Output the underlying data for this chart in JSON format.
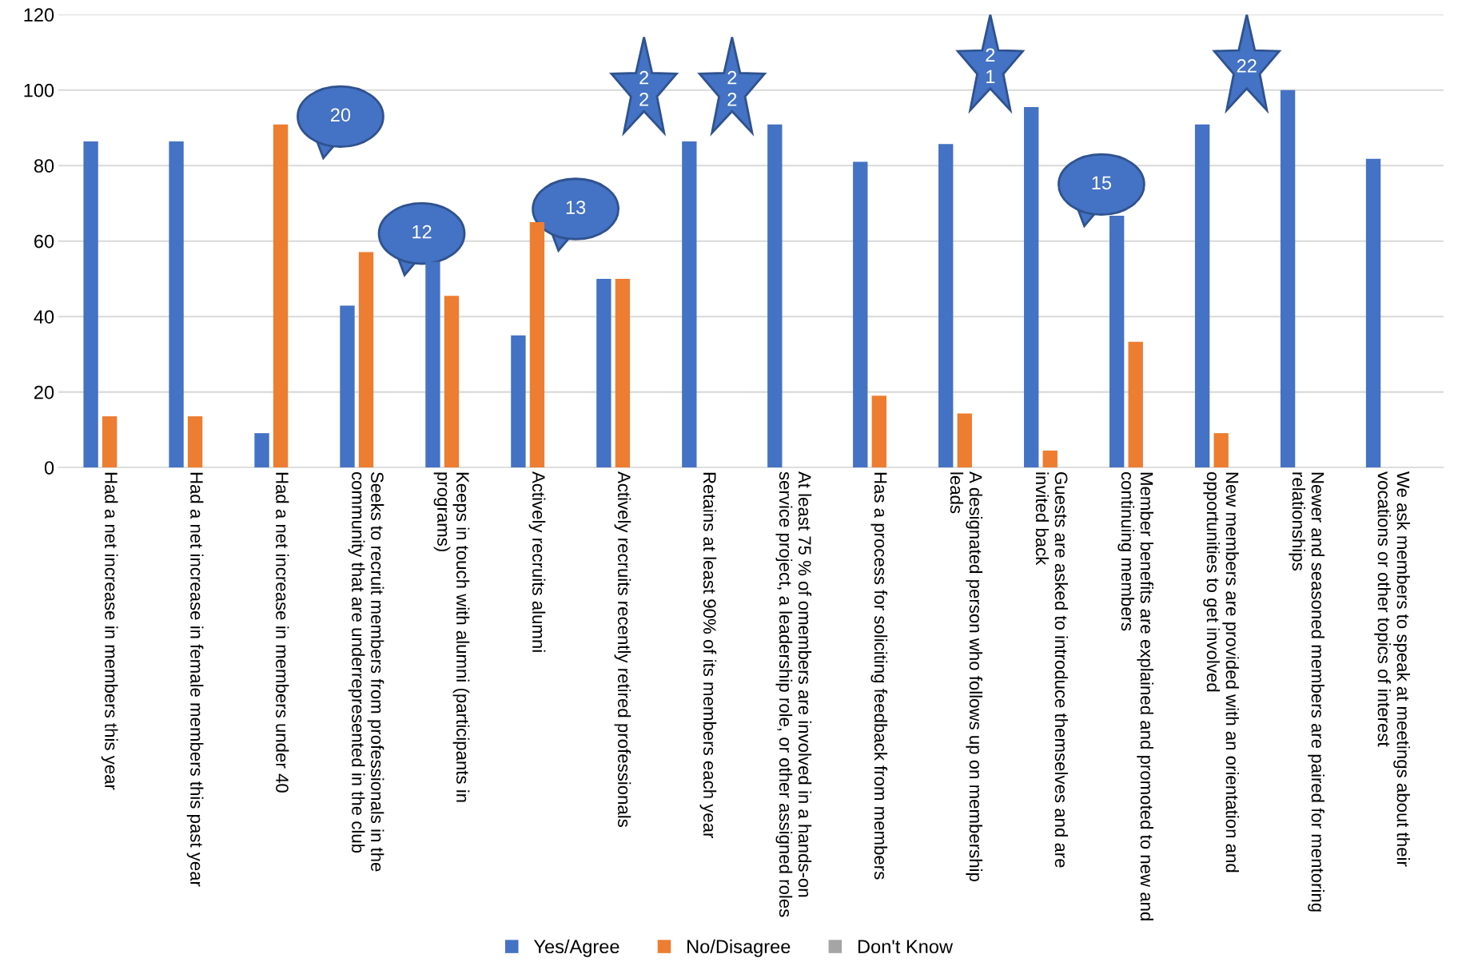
{
  "chart_data": {
    "type": "bar",
    "categories": [
      "Had a net increase in members this year",
      "Had a net increase in female members this past year",
      "Had a net increase in members under 40",
      "Seeks to recruit members from professionals in the\ncommunity that are underrepresented in the club",
      "Keeps in touch with alumni (participants in\nprograms)",
      "Actively recruits alumni",
      "Actively recruits recently retired professionals",
      "Retains at least 90% of its members each year",
      "At least 75 % of omembers are involved in a hands-on\nservice project, a leadership role, or other assigned roles",
      "Has a process for soliciting feedback from members",
      "A designated person who follows up on membership\nleads",
      "Guests are asked to introduce themselves and are\ninvited back",
      "Member benefits are explained and promoted to new and\ncontinuing members",
      "New members are provided with an orientation and\nopportunities to get involved",
      "Newer and seasoned members are paired for mentoring\nrelationships",
      "We ask members to speak at meetings about their\nvocations or other topics of interest"
    ],
    "series": [
      {
        "name": "Yes/Agree",
        "color": "#4472c4",
        "values": [
          86.4,
          86.4,
          9.1,
          42.9,
          54.5,
          35,
          50,
          86.4,
          90.9,
          81,
          85.7,
          95.5,
          66.7,
          90.9,
          100,
          81.8
        ]
      },
      {
        "name": "No/Disagree",
        "color": "#ed7d31",
        "values": [
          13.6,
          13.6,
          90.9,
          57.1,
          45.5,
          65,
          50,
          null,
          null,
          19,
          14.3,
          4.5,
          33.3,
          9.1,
          null,
          null
        ]
      },
      {
        "name": "Don't Know",
        "color": "#a5a5a5",
        "values": [
          null,
          null,
          null,
          null,
          null,
          null,
          null,
          null,
          null,
          null,
          null,
          null,
          null,
          null,
          null,
          null
        ]
      }
    ],
    "ylim": [
      0,
      120
    ],
    "yticks": [
      0,
      20,
      40,
      60,
      80,
      100,
      120
    ],
    "grid": "y",
    "legend": "bottom",
    "annotations": [
      "20",
      "12",
      "13",
      "2\n2",
      "2\n2",
      "2\n1",
      "15",
      "22"
    ]
  }
}
